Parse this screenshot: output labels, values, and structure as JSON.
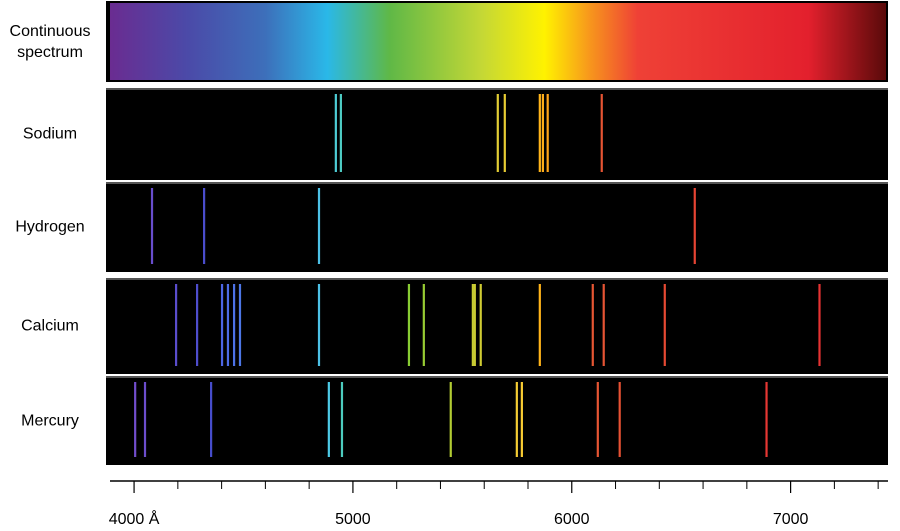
{
  "chart_data": {
    "type": "spectrum",
    "xlim": [
      3890,
      7445
    ],
    "xticks": [
      {
        "value": 4000,
        "label": "4000 Å"
      },
      5000,
      6000,
      7000
    ],
    "xminorticks": [
      4200,
      4400,
      4600,
      4800,
      5200,
      5400,
      5600,
      5800,
      6200,
      6400,
      6600,
      6800,
      7200,
      7400
    ],
    "rows": [
      {
        "name": "Continuous spectrum",
        "continuous": true
      },
      {
        "name": "Sodium",
        "lines": [
          4922,
          4945,
          5662,
          5694,
          5854,
          5868,
          5890,
          6137
        ]
      },
      {
        "name": "Hydrogen",
        "lines": [
          4082,
          4320,
          4845,
          6562
        ]
      },
      {
        "name": "Calcium",
        "lines": [
          4192,
          4288,
          4402,
          4429,
          4457,
          4484,
          4845,
          5256,
          5324,
          5548,
          5557,
          5584,
          5854,
          6096,
          6146,
          6425,
          7132
        ]
      },
      {
        "name": "Mercury",
        "lines": [
          4005,
          4050,
          4352,
          4890,
          4950,
          5447,
          5749,
          5772,
          6119,
          6219,
          6890
        ]
      }
    ]
  }
}
